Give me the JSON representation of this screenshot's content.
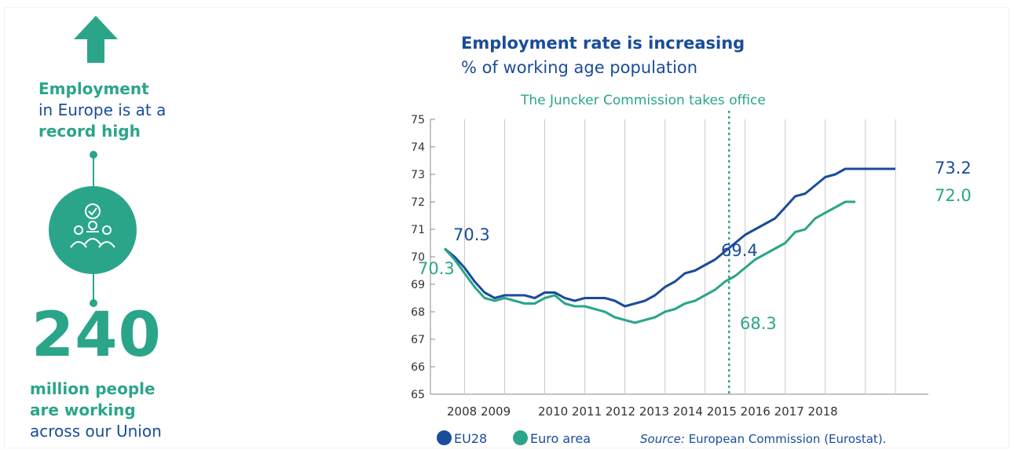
{
  "infographic": {
    "headline_line1": "Employment",
    "headline_line2": "in Europe is at a",
    "headline_line3": "record high",
    "big_number": "240",
    "sub_line1": "million people",
    "sub_line2": "are working",
    "sub_line3": "across our Union",
    "icons": [
      "arrow-up-icon",
      "workers-clock-icon"
    ]
  },
  "colors": {
    "eu28": "#1a4c9a",
    "euro_area": "#2ba58a",
    "grid": "#c9c9c9"
  },
  "chart_data": {
    "type": "line",
    "title": "Employment rate is increasing",
    "subtitle": "% of working age population",
    "annotation": "The Juncker Commission takes office",
    "annotation_x": 2014.85,
    "ylim": [
      65,
      75
    ],
    "yticks": [
      65,
      66,
      67,
      68,
      69,
      70,
      71,
      72,
      73,
      74,
      75
    ],
    "xticks": [
      2008,
      2009,
      2010,
      2011,
      2012,
      2013,
      2014,
      2015,
      2016,
      2017,
      2018
    ],
    "xtick_labels": [
      "2008 2009",
      "2010 2011 2012 2013 2014 2015 2016 2017 2018"
    ],
    "grid": true,
    "legend_placement": "bottom",
    "series": [
      {
        "name": "EU28",
        "color": "#1a4c9a",
        "x": [
          2007.75,
          2008.0,
          2008.25,
          2008.5,
          2008.75,
          2009.0,
          2009.25,
          2009.5,
          2009.75,
          2010.0,
          2010.25,
          2010.5,
          2010.75,
          2011.0,
          2011.25,
          2011.5,
          2011.75,
          2012.0,
          2012.25,
          2012.5,
          2012.75,
          2013.0,
          2013.25,
          2013.5,
          2013.75,
          2014.0,
          2014.25,
          2014.5,
          2014.75,
          2015.0,
          2015.25,
          2015.5,
          2015.75,
          2016.0,
          2016.25,
          2016.5,
          2016.75,
          2017.0,
          2017.25,
          2017.5,
          2017.75,
          2018.0,
          2018.25,
          2018.5,
          2018.75,
          2019.0
        ],
        "values": [
          70.3,
          70.0,
          69.6,
          69.1,
          68.7,
          68.5,
          68.6,
          68.6,
          68.6,
          68.5,
          68.7,
          68.7,
          68.5,
          68.4,
          68.5,
          68.5,
          68.5,
          68.4,
          68.2,
          68.3,
          68.4,
          68.6,
          68.9,
          69.1,
          69.4,
          69.5,
          69.7,
          69.9,
          70.2,
          70.5,
          70.8,
          71.0,
          71.2,
          71.4,
          71.8,
          72.2,
          72.3,
          72.6,
          72.9,
          73.0,
          73.2,
          73.2,
          73.2,
          73.2,
          73.2,
          73.2
        ],
        "start_label": "70.3",
        "mid_label": "69.4",
        "end_label": "73.2"
      },
      {
        "name": "Euro area",
        "color": "#2ba58a",
        "x": [
          2007.75,
          2008.0,
          2008.25,
          2008.5,
          2008.75,
          2009.0,
          2009.25,
          2009.5,
          2009.75,
          2010.0,
          2010.25,
          2010.5,
          2010.75,
          2011.0,
          2011.25,
          2011.5,
          2011.75,
          2012.0,
          2012.25,
          2012.5,
          2012.75,
          2013.0,
          2013.25,
          2013.5,
          2013.75,
          2014.0,
          2014.25,
          2014.5,
          2014.75,
          2015.0,
          2015.25,
          2015.5,
          2015.75,
          2016.0,
          2016.25,
          2016.5,
          2016.75,
          2017.0,
          2017.25,
          2017.5,
          2017.75,
          2018.0
        ],
        "values": [
          70.3,
          69.9,
          69.4,
          68.9,
          68.5,
          68.4,
          68.5,
          68.4,
          68.3,
          68.3,
          68.5,
          68.6,
          68.3,
          68.2,
          68.2,
          68.1,
          68.0,
          67.8,
          67.7,
          67.6,
          67.7,
          67.8,
          68.0,
          68.1,
          68.3,
          68.4,
          68.6,
          68.8,
          69.1,
          69.3,
          69.6,
          69.9,
          70.1,
          70.3,
          70.5,
          70.9,
          71.0,
          71.4,
          71.6,
          71.8,
          72.0,
          72.0
        ],
        "start_label": "70.3",
        "mid_label": "68.3",
        "end_label": "72.0"
      }
    ],
    "source_prefix": "Source:",
    "source_text": "European Commission (Eurostat)."
  }
}
